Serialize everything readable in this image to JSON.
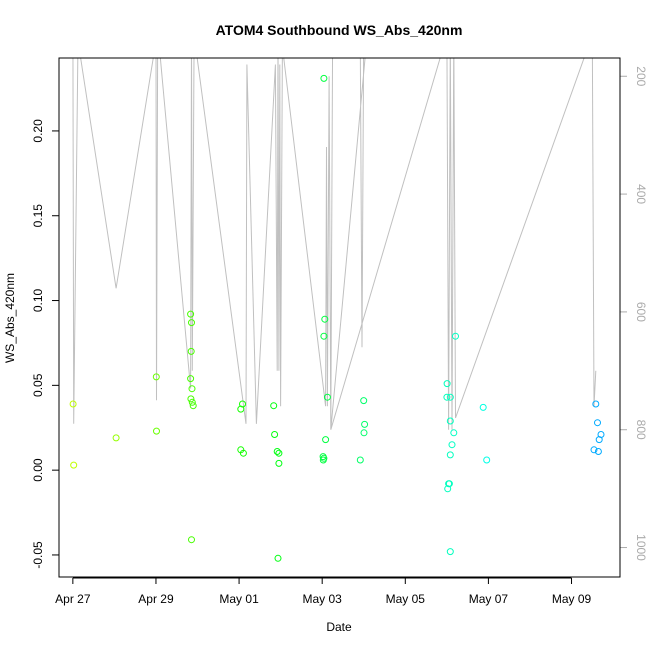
{
  "chart_data": {
    "type": "scatter",
    "title": "ATOM4 Southbound WS_Abs_420nm",
    "xlabel": "Date",
    "ylabel": "WS_Abs_420nm",
    "x_range": [
      "2016-04-26T16:00",
      "2016-05-10T04:00"
    ],
    "ylim": [
      -0.063,
      0.243
    ],
    "x_ticks": [
      {
        "date": "2016-04-27T00:00",
        "label": "Apr 27"
      },
      {
        "date": "2016-04-29T00:00",
        "label": "Apr 29"
      },
      {
        "date": "2016-05-01T00:00",
        "label": "May 01"
      },
      {
        "date": "2016-05-03T00:00",
        "label": "May 03"
      },
      {
        "date": "2016-05-05T00:00",
        "label": "May 05"
      },
      {
        "date": "2016-05-07T00:00",
        "label": "May 07"
      },
      {
        "date": "2016-05-09T00:00",
        "label": "May 09"
      }
    ],
    "y_ticks": [
      {
        "value": -0.05,
        "label": "-0.05"
      },
      {
        "value": 0.0,
        "label": "0.00"
      },
      {
        "value": 0.05,
        "label": "0.05"
      },
      {
        "value": 0.1,
        "label": "0.10"
      },
      {
        "value": 0.15,
        "label": "0.15"
      },
      {
        "value": 0.2,
        "label": "0.20"
      }
    ],
    "secondary_axis": {
      "position": "right",
      "reversed": true,
      "range": [
        169,
        1050
      ],
      "color": "#aaaaaa",
      "ticks": [
        {
          "value": 200,
          "label": "200"
        },
        {
          "value": 400,
          "label": "400"
        },
        {
          "value": 600,
          "label": "600"
        },
        {
          "value": 800,
          "label": "800"
        },
        {
          "value": 1000,
          "label": "1000"
        }
      ],
      "line_color": "#c0c0c0",
      "line": [
        [
          "2016-04-27T00:00",
          120
        ],
        [
          "2016-04-27T00:30",
          790
        ],
        [
          "2016-04-27T03:00",
          140
        ],
        [
          "2016-04-28T01:00",
          560
        ],
        [
          "2016-04-29T00:00",
          140
        ],
        [
          "2016-04-29T00:20",
          750
        ],
        [
          "2016-04-29T01:00",
          120
        ],
        [
          "2016-04-29T20:00",
          730
        ],
        [
          "2016-04-29T20:30",
          130
        ],
        [
          "2016-04-29T21:00",
          700
        ],
        [
          "2016-04-29T22:00",
          130
        ],
        [
          "2016-05-01T04:00",
          790
        ],
        [
          "2016-05-01T04:30",
          180
        ],
        [
          "2016-05-01T10:00",
          790
        ],
        [
          "2016-05-01T21:00",
          180
        ],
        [
          "2016-05-01T22:00",
          700
        ],
        [
          "2016-05-01T22:30",
          130
        ],
        [
          "2016-05-01T23:00",
          700
        ],
        [
          "2016-05-01T23:30",
          180
        ],
        [
          "2016-05-02T00:00",
          760
        ],
        [
          "2016-05-02T01:00",
          150
        ],
        [
          "2016-05-03T02:00",
          760
        ],
        [
          "2016-05-03T02:30",
          320
        ],
        [
          "2016-05-03T03:00",
          760
        ],
        [
          "2016-05-03T04:00",
          200
        ],
        [
          "2016-05-03T05:00",
          800
        ],
        [
          "2016-05-03T06:00",
          140
        ],
        [
          "2016-05-03T22:00",
          150
        ],
        [
          "2016-05-03T23:00",
          660
        ],
        [
          "2016-05-04T00:00",
          130
        ],
        [
          "2016-05-04T02:00",
          130
        ],
        [
          "2016-05-03T05:00",
          800
        ],
        [
          "2016-05-06T00:00",
          130
        ],
        [
          "2016-05-06T01:00",
          800
        ],
        [
          "2016-05-06T02:00",
          130
        ],
        [
          "2016-05-06T03:00",
          800
        ],
        [
          "2016-05-06T04:00",
          130
        ],
        [
          "2016-05-06T05:00",
          780
        ],
        [
          "2016-05-09T12:00",
          130
        ],
        [
          "2016-05-09T13:00",
          760
        ],
        [
          "2016-05-09T14:00",
          700
        ]
      ]
    },
    "color_gradient": {
      "start_date": "2016-04-27T00:00",
      "end_date": "2016-05-09T14:00",
      "start_hue": 75,
      "end_hue": 200
    },
    "points": [
      [
        "2016-04-27T00:10",
        0.039
      ],
      [
        "2016-04-27T00:30",
        0.003
      ],
      [
        "2016-04-28T01:00",
        0.019
      ],
      [
        "2016-04-29T00:10",
        0.055
      ],
      [
        "2016-04-29T00:20",
        0.023
      ],
      [
        "2016-04-29T20:00",
        0.092
      ],
      [
        "2016-04-29T20:30",
        0.087
      ],
      [
        "2016-04-29T20:20",
        0.07
      ],
      [
        "2016-04-29T20:00",
        0.054
      ],
      [
        "2016-04-29T20:50",
        0.048
      ],
      [
        "2016-04-29T20:10",
        0.042
      ],
      [
        "2016-04-29T21:00",
        0.04
      ],
      [
        "2016-04-29T21:30",
        0.038
      ],
      [
        "2016-04-29T20:30",
        -0.041
      ],
      [
        "2016-05-01T01:00",
        0.036
      ],
      [
        "2016-05-01T02:00",
        0.039
      ],
      [
        "2016-05-01T01:00",
        0.012
      ],
      [
        "2016-05-01T02:30",
        0.01
      ],
      [
        "2016-05-01T20:00",
        0.038
      ],
      [
        "2016-05-01T20:30",
        0.021
      ],
      [
        "2016-05-01T22:00",
        0.011
      ],
      [
        "2016-05-01T23:00",
        0.01
      ],
      [
        "2016-05-01T23:00",
        0.004
      ],
      [
        "2016-05-01T22:30",
        -0.052
      ],
      [
        "2016-05-03T01:00",
        0.231
      ],
      [
        "2016-05-03T01:30",
        0.089
      ],
      [
        "2016-05-03T01:00",
        0.079
      ],
      [
        "2016-05-03T03:00",
        0.043
      ],
      [
        "2016-05-03T02:00",
        0.018
      ],
      [
        "2016-05-03T00:30",
        0.008
      ],
      [
        "2016-05-03T01:00",
        0.007
      ],
      [
        "2016-05-03T00:40",
        0.006
      ],
      [
        "2016-05-03T22:00",
        0.006
      ],
      [
        "2016-05-04T00:00",
        0.041
      ],
      [
        "2016-05-04T00:30",
        0.027
      ],
      [
        "2016-05-04T00:10",
        0.022
      ],
      [
        "2016-05-06T00:10",
        0.051
      ],
      [
        "2016-05-06T00:00",
        0.043
      ],
      [
        "2016-05-06T02:00",
        0.043
      ],
      [
        "2016-05-06T02:00",
        0.029
      ],
      [
        "2016-05-06T04:00",
        0.022
      ],
      [
        "2016-05-06T03:00",
        0.015
      ],
      [
        "2016-05-06T02:00",
        0.009
      ],
      [
        "2016-05-06T01:00",
        -0.008
      ],
      [
        "2016-05-06T00:30",
        -0.011
      ],
      [
        "2016-05-06T01:30",
        -0.008
      ],
      [
        "2016-05-06T02:00",
        -0.048
      ],
      [
        "2016-05-06T05:00",
        0.079
      ],
      [
        "2016-05-06T21:00",
        0.037
      ],
      [
        "2016-05-06T23:00",
        0.006
      ],
      [
        "2016-05-09T14:00",
        0.039
      ],
      [
        "2016-05-09T15:00",
        0.028
      ],
      [
        "2016-05-09T17:00",
        0.021
      ],
      [
        "2016-05-09T16:00",
        0.018
      ],
      [
        "2016-05-09T13:00",
        0.012
      ],
      [
        "2016-05-09T15:30",
        0.011
      ]
    ]
  }
}
